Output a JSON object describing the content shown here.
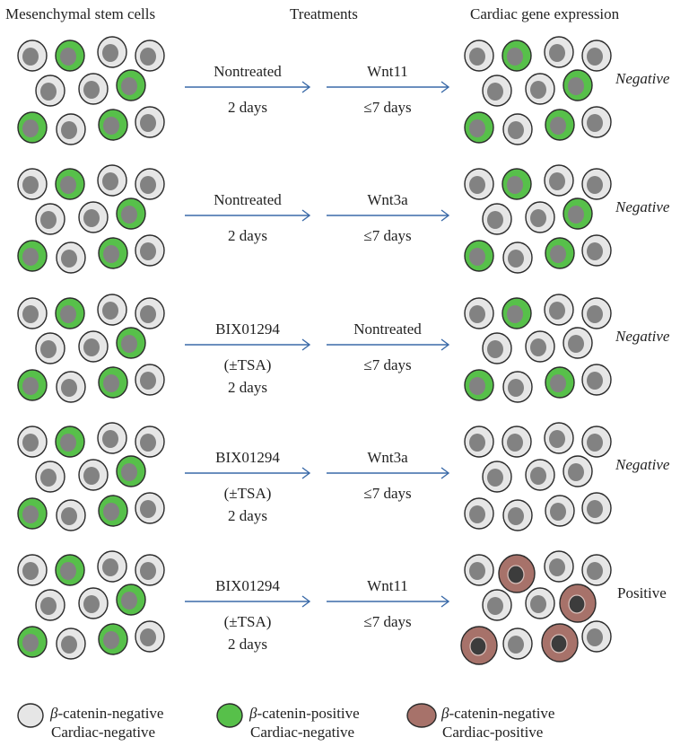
{
  "headers": {
    "col1": "Mesenchymal stem cells",
    "col2": "Treatments",
    "col3": "Cardiac gene expression"
  },
  "colors": {
    "negative_fill": "#e6e6e6",
    "positive_fill": "#57c04a",
    "cardiac_fill": "#a7726a",
    "nucleus": "#828282",
    "cardiac_nucleus": "#3c3c3c",
    "outline": "#2b2b2b",
    "arrow": "#3a6aa8"
  },
  "rows": [
    {
      "step1": [
        "Nontreated",
        "2 days"
      ],
      "step2": [
        "Wnt11",
        "≤7 days"
      ],
      "result": "Negative",
      "result_italic": true,
      "output": "mixed"
    },
    {
      "step1": [
        "Nontreated",
        "2 days"
      ],
      "step2": [
        "Wnt3a",
        "≤7 days"
      ],
      "result": "Negative",
      "result_italic": true,
      "output": "mixed"
    },
    {
      "step1": [
        "BIX01294",
        "(±TSA)",
        "2 days"
      ],
      "step2": [
        "Nontreated",
        "≤7 days"
      ],
      "result": "Negative",
      "result_italic": true,
      "output": "mixed2"
    },
    {
      "step1": [
        "BIX01294",
        "(±TSA)",
        "2 days"
      ],
      "step2": [
        "Wnt3a",
        "≤7 days"
      ],
      "result": "Negative",
      "result_italic": true,
      "output": "allneg"
    },
    {
      "step1": [
        "BIX01294",
        "(±TSA)",
        "2 days"
      ],
      "step2": [
        "Wnt11",
        "≤7 days"
      ],
      "result": "Positive",
      "result_italic": false,
      "output": "cardiac"
    }
  ],
  "legend": [
    {
      "type": "negative",
      "line1": "β-catenin-negative",
      "line2": "Cardiac-negative"
    },
    {
      "type": "positive",
      "line1": "β-catenin-positive",
      "line2": "Cardiac-negative"
    },
    {
      "type": "cardiac",
      "line1": "β-catenin-negative",
      "line2": "Cardiac-positive"
    }
  ]
}
